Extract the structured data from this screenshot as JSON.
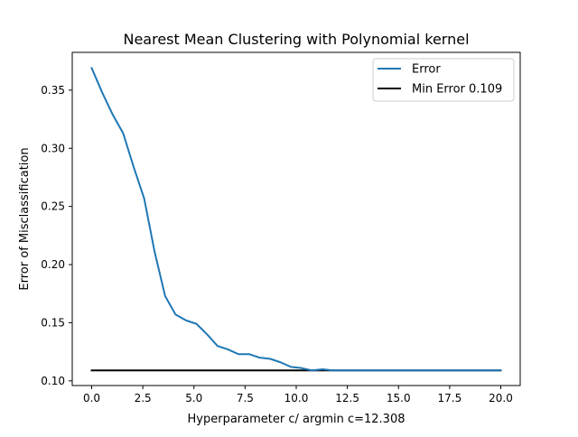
{
  "chart_data": {
    "type": "line",
    "title": "Nearest Mean Clustering with Polynomial kernel",
    "xlabel": "Hyperparameter c/ argmin c=12.308",
    "ylabel": "Error of Misclassification",
    "xlim": [
      -0.95,
      20.95
    ],
    "ylim": [
      0.096,
      0.3825
    ],
    "xticks": [
      0.0,
      2.5,
      5.0,
      7.5,
      10.0,
      12.5,
      15.0,
      17.5,
      20.0
    ],
    "xtick_labels": [
      "0.0",
      "2.5",
      "5.0",
      "7.5",
      "10.0",
      "12.5",
      "15.0",
      "17.5",
      "20.0"
    ],
    "yticks": [
      0.1,
      0.15,
      0.2,
      0.25,
      0.3,
      0.35
    ],
    "ytick_labels": [
      "0.10",
      "0.15",
      "0.20",
      "0.25",
      "0.30",
      "0.35"
    ],
    "grid": false,
    "legend_position": "top-right",
    "series": [
      {
        "name": "Error",
        "color": "#1f77b4",
        "x": [
          0.0,
          0.513,
          1.026,
          1.538,
          2.051,
          2.564,
          3.077,
          3.59,
          4.103,
          4.615,
          5.128,
          5.641,
          6.154,
          6.667,
          7.179,
          7.692,
          8.205,
          8.718,
          9.231,
          9.744,
          10.256,
          10.769,
          11.282,
          11.795,
          12.308,
          12.821,
          13.333,
          13.846,
          14.359,
          14.872,
          15.385,
          15.897,
          16.41,
          16.923,
          17.436,
          17.949,
          18.462,
          18.974,
          19.487,
          20.0
        ],
        "y": [
          0.369,
          0.348,
          0.329,
          0.313,
          0.284,
          0.257,
          0.211,
          0.173,
          0.157,
          0.152,
          0.149,
          0.14,
          0.13,
          0.127,
          0.123,
          0.123,
          0.12,
          0.119,
          0.116,
          0.112,
          0.111,
          0.109,
          0.11,
          0.109,
          0.109,
          0.109,
          0.109,
          0.109,
          0.109,
          0.109,
          0.109,
          0.109,
          0.109,
          0.109,
          0.109,
          0.109,
          0.109,
          0.109,
          0.109,
          0.109
        ]
      },
      {
        "name": "Min Error 0.109",
        "color": "#000000",
        "x": [
          0.0,
          20.0
        ],
        "y": [
          0.109,
          0.109
        ]
      }
    ]
  }
}
